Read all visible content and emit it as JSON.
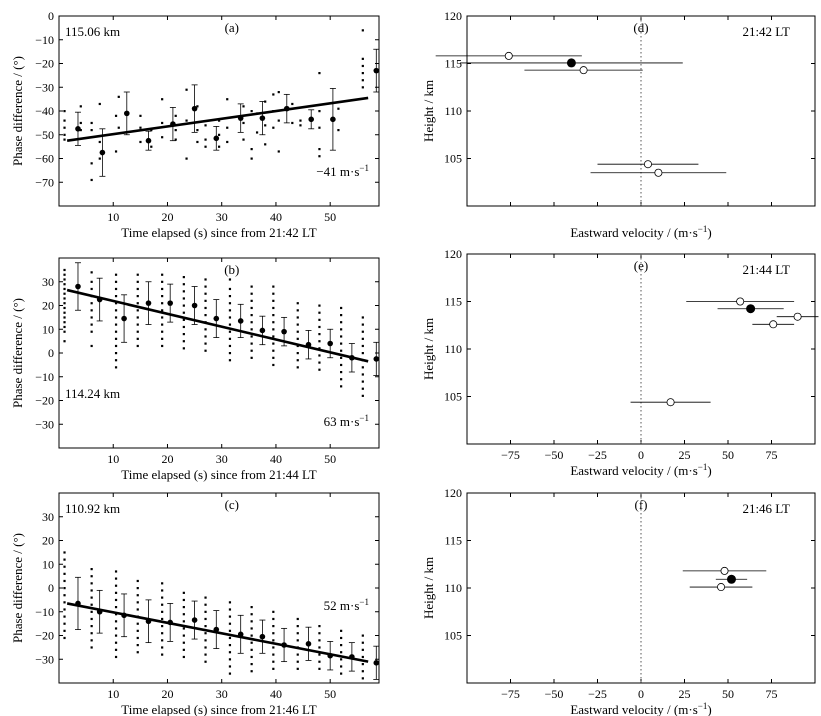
{
  "figure": {
    "left_xlabel_template": "Time elapsed (s) since from ",
    "left_ylabel": "Phase difference / (°)",
    "right_xlabel": "Eastward velocity / (m·s",
    "right_xlabel_exp": "−1",
    "right_xlabel_close": ")",
    "right_ylabel": "Height / km",
    "speed_unit": "m·s",
    "speed_unit_exp": "−1"
  },
  "chart_data": [
    {
      "type": "scatter",
      "panel": "a",
      "label": "(a)",
      "height_label": "115.06 km",
      "lt": "21:42 LT",
      "speed_text": "−41",
      "xlim": [
        0,
        59
      ],
      "ylim": [
        -80,
        0
      ],
      "xticks": [
        10,
        20,
        30,
        40,
        50
      ],
      "yticks": [
        0,
        -10,
        -20,
        -30,
        -40,
        -50,
        -60,
        -70
      ],
      "fit": {
        "x0": 1.5,
        "y0": -52.5,
        "x1": 57,
        "y1": -34.5
      },
      "means": [
        {
          "x": 3.5,
          "y": -47.5,
          "err": 7
        },
        {
          "x": 8,
          "y": -57.5,
          "err": 10
        },
        {
          "x": 12.5,
          "y": -41,
          "err": 9
        },
        {
          "x": 16.5,
          "y": -52.5,
          "err": 4
        },
        {
          "x": 21,
          "y": -45.5,
          "err": 7
        },
        {
          "x": 25,
          "y": -39,
          "err": 10
        },
        {
          "x": 29,
          "y": -51.5,
          "err": 5
        },
        {
          "x": 33.5,
          "y": -43,
          "err": 6
        },
        {
          "x": 37.5,
          "y": -43,
          "err": 7
        },
        {
          "x": 42,
          "y": -39,
          "err": 6
        },
        {
          "x": 46.5,
          "y": -43.5,
          "err": 4
        },
        {
          "x": 50.5,
          "y": -43.5,
          "err": 13
        },
        {
          "x": 58.5,
          "y": -23,
          "err": 9
        }
      ],
      "raw": [
        {
          "x": 1,
          "ys": [
            -40,
            -44,
            -47,
            -50,
            -52
          ]
        },
        {
          "x": 4,
          "ys": [
            -38,
            -45,
            -48
          ]
        },
        {
          "x": 6,
          "ys": [
            -45,
            -48,
            -62,
            -69
          ]
        },
        {
          "x": 7.5,
          "ys": [
            -37,
            -53,
            -60
          ]
        },
        {
          "x": 10.5,
          "ys": [
            -42,
            -57
          ]
        },
        {
          "x": 11,
          "ys": [
            -34,
            -47
          ]
        },
        {
          "x": 15,
          "ys": [
            -42,
            -47,
            -53
          ]
        },
        {
          "x": 17,
          "ys": [
            -48,
            -55
          ]
        },
        {
          "x": 19,
          "ys": [
            -35,
            -45,
            -51
          ]
        },
        {
          "x": 21.5,
          "ys": [
            -42,
            -48,
            -52
          ]
        },
        {
          "x": 23.5,
          "ys": [
            -31,
            -44,
            -60
          ]
        },
        {
          "x": 25.5,
          "ys": [
            -38,
            -48,
            -53
          ]
        },
        {
          "x": 27,
          "ys": [
            -46,
            -52,
            -55
          ]
        },
        {
          "x": 29.5,
          "ys": [
            -44,
            -50,
            -55
          ]
        },
        {
          "x": 31,
          "ys": [
            -35,
            -47,
            -53
          ]
        },
        {
          "x": 34,
          "ys": [
            -38,
            -45,
            -52
          ]
        },
        {
          "x": 35.5,
          "ys": [
            -40,
            -56,
            -60
          ]
        },
        {
          "x": 36.5,
          "ys": [
            -41,
            -49
          ]
        },
        {
          "x": 38,
          "ys": [
            -36,
            -46,
            -54
          ]
        },
        {
          "x": 39.5,
          "ys": [
            -33,
            -40,
            -47
          ]
        },
        {
          "x": 40.5,
          "ys": [
            -32,
            -44,
            -57
          ]
        },
        {
          "x": 43,
          "ys": [
            -37,
            -45
          ]
        },
        {
          "x": 44.5,
          "ys": [
            -44,
            -46
          ]
        },
        {
          "x": 48,
          "ys": [
            -24,
            -40,
            -47,
            -56,
            -59
          ]
        },
        {
          "x": 51.5,
          "ys": [
            -39,
            -48
          ]
        },
        {
          "x": 56,
          "ys": [
            -6,
            -18,
            -21,
            -24,
            -27,
            -30
          ]
        }
      ]
    },
    {
      "type": "scatter",
      "panel": "b",
      "label": "(b)",
      "height_label": "114.24 km",
      "lt": "21:44 LT",
      "speed_text": "63",
      "xlim": [
        0,
        59
      ],
      "ylim": [
        -40,
        40
      ],
      "xticks": [
        10,
        20,
        30,
        40,
        50
      ],
      "yticks": [
        30,
        20,
        10,
        0,
        -10,
        -20,
        -30
      ],
      "fit": {
        "x0": 1.5,
        "y0": 26.5,
        "x1": 57,
        "y1": -3.5
      },
      "means": [
        {
          "x": 3.5,
          "y": 28,
          "err": 10
        },
        {
          "x": 7.5,
          "y": 22.5,
          "err": 9
        },
        {
          "x": 12,
          "y": 14.5,
          "err": 10
        },
        {
          "x": 16.5,
          "y": 21,
          "err": 9
        },
        {
          "x": 20.5,
          "y": 21,
          "err": 8
        },
        {
          "x": 25,
          "y": 20,
          "err": 8
        },
        {
          "x": 29,
          "y": 14.5,
          "err": 8
        },
        {
          "x": 33.5,
          "y": 13.5,
          "err": 7
        },
        {
          "x": 37.5,
          "y": 9.5,
          "err": 6
        },
        {
          "x": 41.5,
          "y": 9,
          "err": 6
        },
        {
          "x": 46,
          "y": 3.5,
          "err": 6
        },
        {
          "x": 50,
          "y": 4,
          "err": 6
        },
        {
          "x": 54,
          "y": -2,
          "err": 6
        },
        {
          "x": 58.5,
          "y": -2.5,
          "err": 7
        }
      ],
      "raw": [
        {
          "x": 1,
          "ys": [
            35,
            33,
            31,
            29,
            27,
            25,
            23,
            21,
            19,
            17,
            15,
            13,
            11,
            9,
            5
          ]
        },
        {
          "x": 6,
          "ys": [
            34,
            30,
            27,
            24,
            21,
            18,
            15,
            12,
            9,
            3
          ]
        },
        {
          "x": 10.5,
          "ys": [
            33,
            30,
            27,
            24,
            21,
            18,
            15,
            12,
            9,
            6,
            3,
            0,
            -3,
            -6
          ]
        },
        {
          "x": 14.5,
          "ys": [
            33,
            30,
            27,
            24,
            21,
            18,
            15,
            12,
            9,
            6,
            3
          ]
        },
        {
          "x": 19,
          "ys": [
            33,
            30,
            27,
            24,
            21,
            18,
            15,
            12,
            9,
            6,
            3
          ]
        },
        {
          "x": 23,
          "ys": [
            32,
            29,
            26,
            23,
            20,
            17,
            14,
            11,
            8,
            5,
            2
          ]
        },
        {
          "x": 27,
          "ys": [
            31,
            28,
            25,
            22,
            19,
            16,
            13,
            10,
            7,
            4,
            1
          ]
        },
        {
          "x": 31.5,
          "ys": [
            31,
            27,
            24,
            21,
            18,
            15,
            12,
            9,
            6,
            3,
            0,
            -3
          ]
        },
        {
          "x": 35.5,
          "ys": [
            28,
            25,
            22,
            19,
            16,
            13,
            10,
            7,
            4,
            1,
            -2
          ]
        },
        {
          "x": 39.5,
          "ys": [
            28,
            25,
            22,
            19,
            16,
            13,
            10,
            7,
            4,
            1,
            -2,
            -5
          ]
        },
        {
          "x": 44,
          "ys": [
            21,
            18,
            15,
            12,
            9,
            6,
            3,
            0,
            -3,
            -6
          ]
        },
        {
          "x": 48,
          "ys": [
            20,
            17,
            14,
            11,
            8,
            5,
            2,
            -1,
            -4,
            -7
          ]
        },
        {
          "x": 52,
          "ys": [
            19,
            16,
            13,
            10,
            7,
            4,
            1,
            -2,
            -5,
            -8,
            -11,
            -14
          ]
        },
        {
          "x": 56,
          "ys": [
            15,
            12,
            9,
            6,
            3,
            0,
            -3,
            -6,
            -9,
            -12,
            -15,
            -18
          ]
        }
      ]
    },
    {
      "type": "scatter",
      "panel": "c",
      "label": "(c)",
      "height_label": "110.92 km",
      "lt": "21:46 LT",
      "speed_text": "52",
      "xlim": [
        0,
        59
      ],
      "ylim": [
        -40,
        40
      ],
      "xticks": [
        10,
        20,
        30,
        40,
        50
      ],
      "yticks": [
        30,
        20,
        10,
        0,
        -10,
        -20,
        -30
      ],
      "fit": {
        "x0": 1.5,
        "y0": -6.5,
        "x1": 57,
        "y1": -31
      },
      "means": [
        {
          "x": 3.5,
          "y": -6.5,
          "err": 11
        },
        {
          "x": 7.5,
          "y": -10,
          "err": 9
        },
        {
          "x": 12,
          "y": -11.5,
          "err": 9
        },
        {
          "x": 16.5,
          "y": -14,
          "err": 9
        },
        {
          "x": 20.5,
          "y": -14.5,
          "err": 8
        },
        {
          "x": 25,
          "y": -13.5,
          "err": 8
        },
        {
          "x": 29,
          "y": -17.5,
          "err": 8
        },
        {
          "x": 33.5,
          "y": -19.5,
          "err": 8
        },
        {
          "x": 37.5,
          "y": -20.5,
          "err": 7
        },
        {
          "x": 41.5,
          "y": -24,
          "err": 7
        },
        {
          "x": 46,
          "y": -23.5,
          "err": 7
        },
        {
          "x": 50,
          "y": -28.5,
          "err": 6
        },
        {
          "x": 54,
          "y": -29,
          "err": 6
        },
        {
          "x": 58.5,
          "y": -31.5,
          "err": 7
        }
      ],
      "raw": [
        {
          "x": 1,
          "ys": [
            15,
            12,
            9,
            6,
            3,
            0,
            -3,
            -6,
            -9,
            -12,
            -15,
            -18,
            -21
          ]
        },
        {
          "x": 6,
          "ys": [
            8,
            5,
            2,
            -1,
            -4,
            -7,
            -10,
            -13,
            -16,
            -19,
            -22,
            -25
          ]
        },
        {
          "x": 10.5,
          "ys": [
            7,
            4,
            1,
            -2,
            -5,
            -8,
            -11,
            -14,
            -17,
            -20,
            -23,
            -26,
            -29
          ]
        },
        {
          "x": 14.5,
          "ys": [
            3,
            0,
            -3,
            -6,
            -9,
            -12,
            -15,
            -18,
            -21,
            -24,
            -27
          ]
        },
        {
          "x": 19,
          "ys": [
            2,
            -1,
            -4,
            -7,
            -10,
            -13,
            -16,
            -19,
            -22,
            -25,
            -28
          ]
        },
        {
          "x": 23,
          "ys": [
            -2,
            -5,
            -8,
            -11,
            -14,
            -17,
            -20,
            -23,
            -26,
            -29
          ]
        },
        {
          "x": 27,
          "ys": [
            -4,
            -7,
            -10,
            -13,
            -16,
            -19,
            -22,
            -25,
            -28,
            -31
          ]
        },
        {
          "x": 31.5,
          "ys": [
            -6,
            -9,
            -12,
            -15,
            -18,
            -21,
            -24,
            -27,
            -30,
            -33,
            -36
          ]
        },
        {
          "x": 35.5,
          "ys": [
            -8,
            -11,
            -14,
            -17,
            -20,
            -23,
            -26,
            -29,
            -32,
            -35
          ]
        },
        {
          "x": 39.5,
          "ys": [
            -10,
            -13,
            -16,
            -19,
            -22,
            -25,
            -28,
            -31,
            -34
          ]
        },
        {
          "x": 44,
          "ys": [
            -13,
            -16,
            -19,
            -22,
            -25,
            -28,
            -31,
            -34
          ]
        },
        {
          "x": 48,
          "ys": [
            -16,
            -19,
            -22,
            -25,
            -28,
            -31,
            -34
          ]
        },
        {
          "x": 52,
          "ys": [
            -18,
            -21,
            -24,
            -27,
            -30,
            -33,
            -36
          ]
        },
        {
          "x": 56,
          "ys": [
            -20,
            -23,
            -26,
            -29,
            -32,
            -35,
            -38
          ]
        }
      ]
    },
    {
      "type": "scatter",
      "panel": "d",
      "label": "(d)",
      "lt": "21:42 LT",
      "xlim": [
        -100,
        100
      ],
      "ylim": [
        100,
        120
      ],
      "xticks": [
        -75,
        -50,
        -25,
        0,
        25,
        50,
        75
      ],
      "yticks": [
        120,
        115,
        110,
        105
      ],
      "show_xticklabels": false,
      "points": [
        {
          "x": -76,
          "y": 115.8,
          "xerr": 42,
          "filled": false
        },
        {
          "x": -40,
          "y": 115.06,
          "xerr": 64,
          "filled": true
        },
        {
          "x": -33,
          "y": 114.3,
          "xerr": 34,
          "filled": false
        },
        {
          "x": 4,
          "y": 104.4,
          "xerr": 29,
          "filled": false
        },
        {
          "x": 10,
          "y": 103.5,
          "xerr": 39,
          "filled": false
        }
      ]
    },
    {
      "type": "scatter",
      "panel": "e",
      "label": "(e)",
      "lt": "21:44 LT",
      "xlim": [
        -100,
        100
      ],
      "ylim": [
        100,
        120
      ],
      "xticks": [
        -75,
        -50,
        -25,
        0,
        25,
        50,
        75
      ],
      "yticks": [
        120,
        115,
        110,
        105
      ],
      "show_xticklabels": true,
      "points": [
        {
          "x": 57,
          "y": 115,
          "xerr": 31,
          "filled": false
        },
        {
          "x": 63,
          "y": 114.24,
          "xerr": 19,
          "filled": true
        },
        {
          "x": 90,
          "y": 113.4,
          "xerr": 12,
          "filled": false
        },
        {
          "x": 76,
          "y": 112.6,
          "xerr": 12,
          "filled": false
        },
        {
          "x": 17,
          "y": 104.4,
          "xerr": 23,
          "filled": false
        }
      ]
    },
    {
      "type": "scatter",
      "panel": "f",
      "label": "(f)",
      "lt": "21:46 LT",
      "xlim": [
        -100,
        100
      ],
      "ylim": [
        100,
        120
      ],
      "xticks": [
        -75,
        -50,
        -25,
        0,
        25,
        50,
        75
      ],
      "yticks": [
        120,
        115,
        110,
        105
      ],
      "show_xticklabels": true,
      "points": [
        {
          "x": 48,
          "y": 111.8,
          "xerr": 24,
          "filled": false
        },
        {
          "x": 52,
          "y": 110.92,
          "xerr": 9,
          "filled": true
        },
        {
          "x": 46,
          "y": 110.1,
          "xerr": 18,
          "filled": false
        }
      ]
    }
  ]
}
